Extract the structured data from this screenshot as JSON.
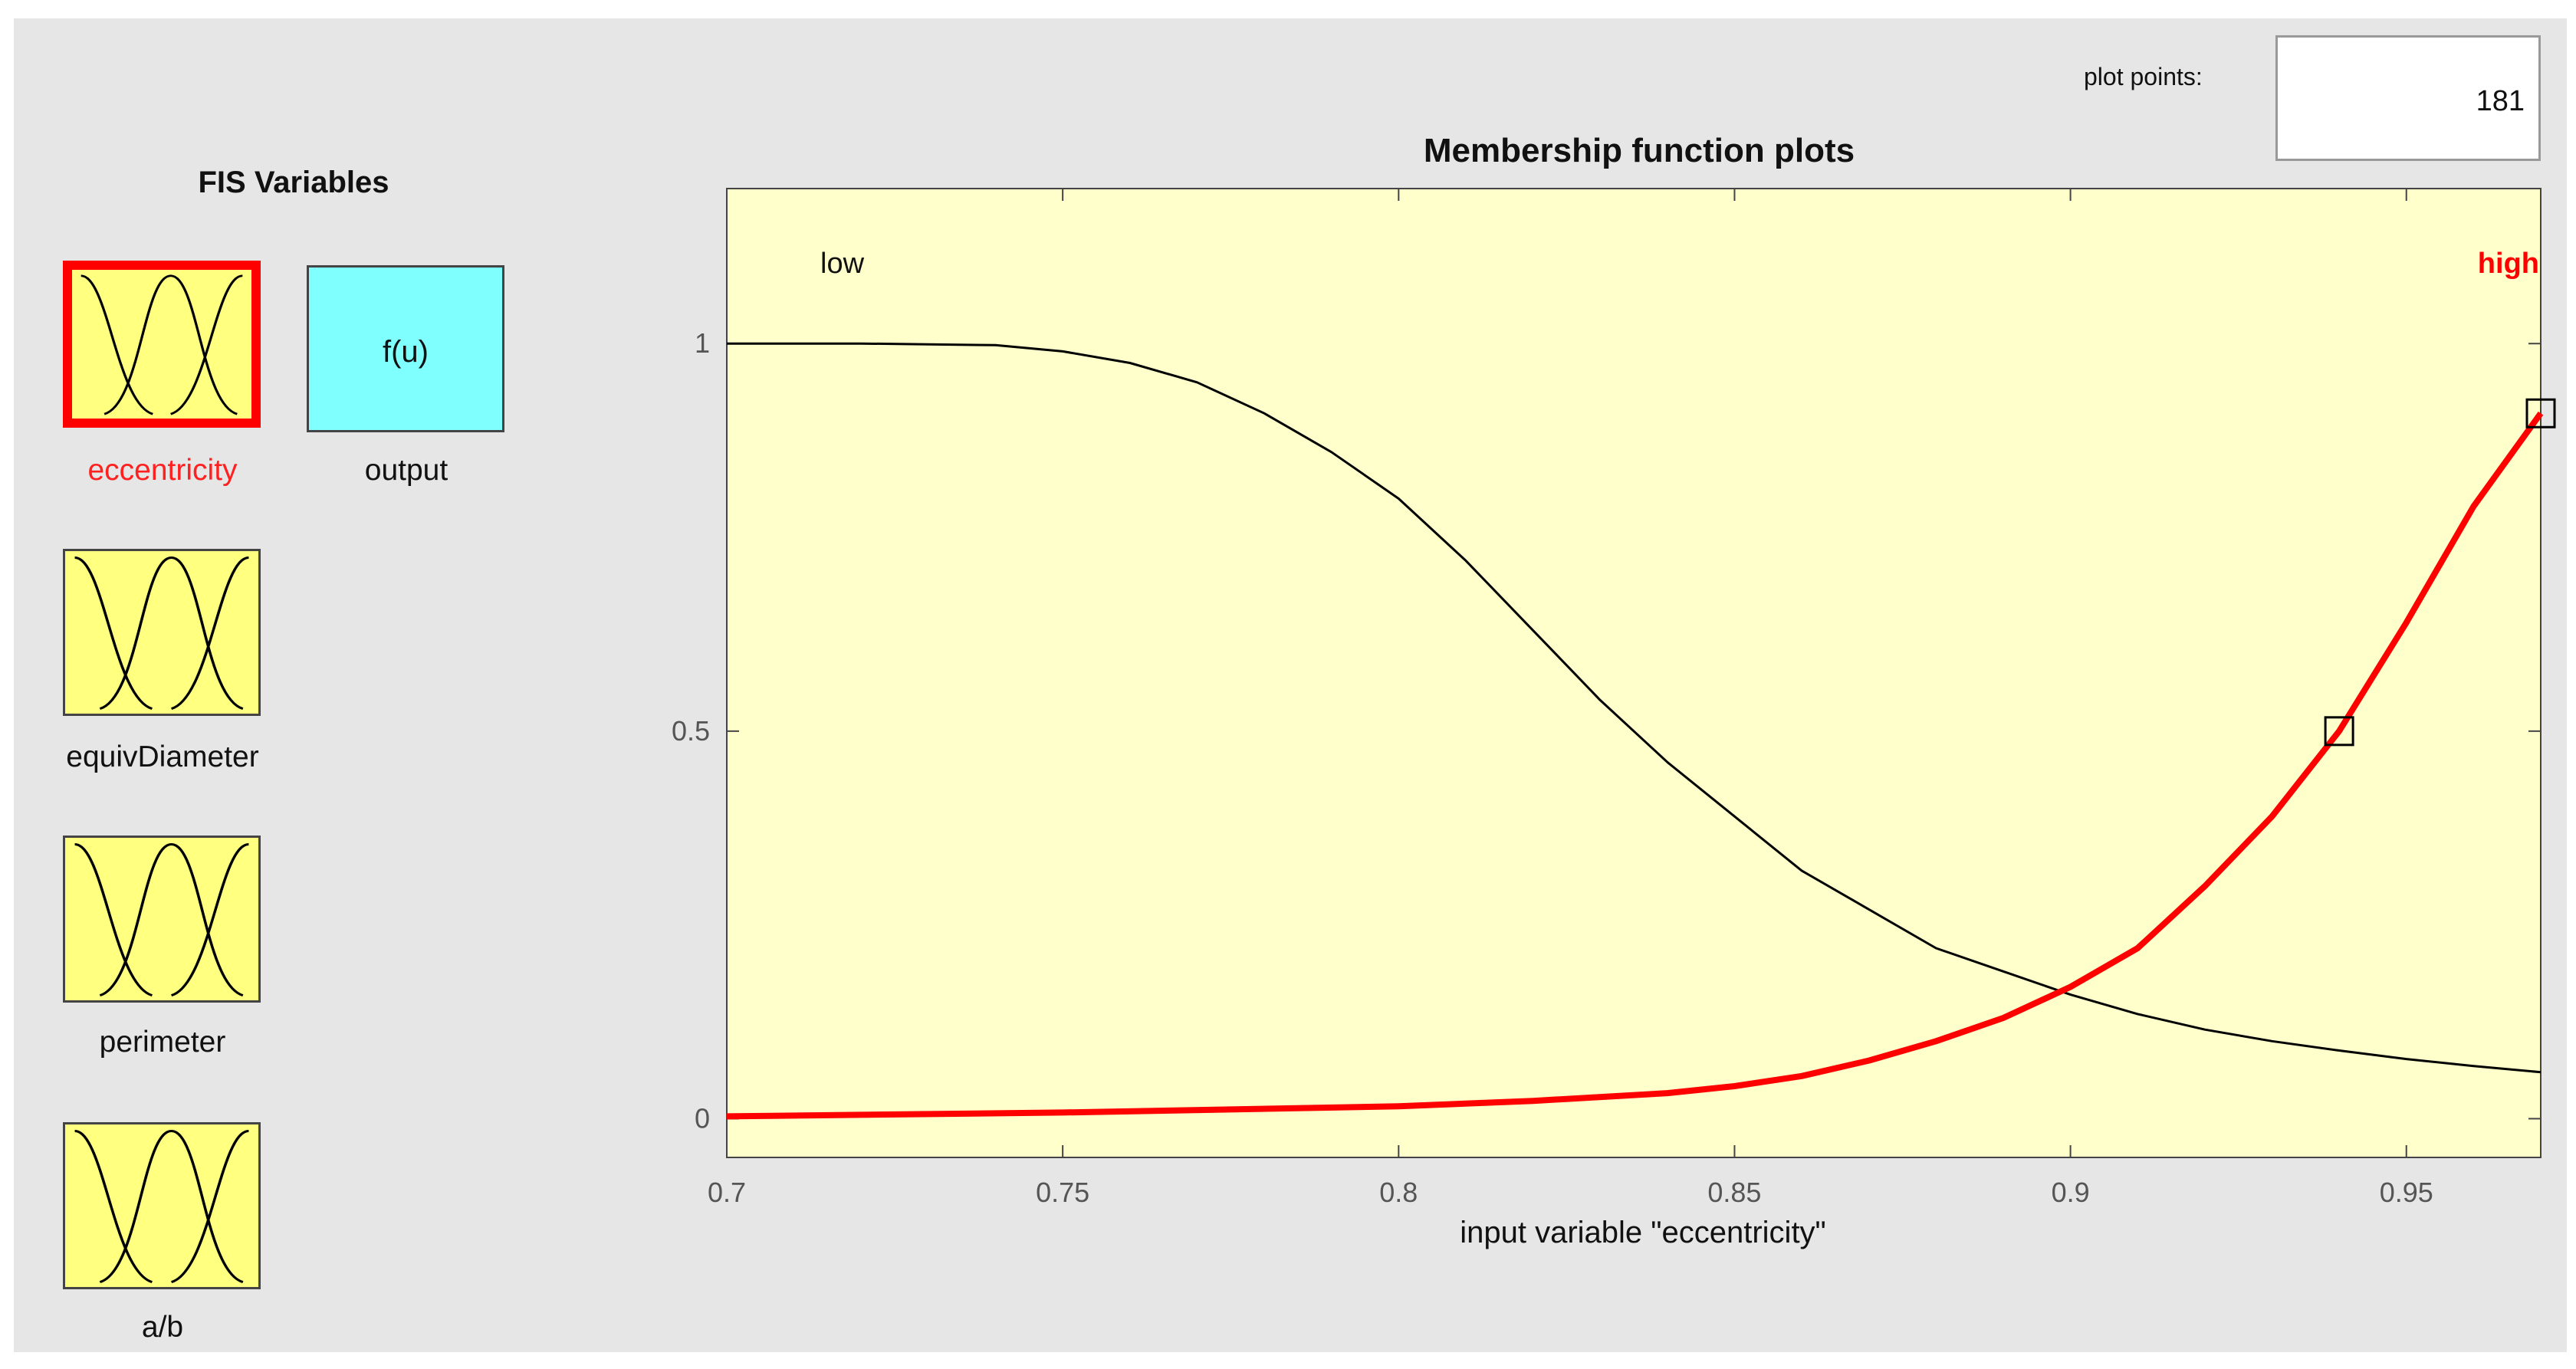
{
  "fis": {
    "title": "FIS Variables",
    "inputs": [
      {
        "name": "eccentricity",
        "selected": true
      },
      {
        "name": "equivDiameter",
        "selected": false
      },
      {
        "name": "perimeter",
        "selected": false
      },
      {
        "name": "a/b",
        "selected": false
      }
    ],
    "output": {
      "name": "output",
      "symbol": "f(u)"
    }
  },
  "plot_points": {
    "label": "plot points:",
    "value": "181"
  },
  "colors": {
    "window_bg": "#e6e6e6",
    "plot_bg": "#ffffcc",
    "input_tile": "#ffff80",
    "output_tile": "#80ffff",
    "selected": "#ff0000"
  },
  "chart_data": {
    "type": "line",
    "title": "Membership function plots",
    "xlabel": "input variable \"eccentricity\"",
    "ylabel": "",
    "xlim": [
      0.7,
      0.97
    ],
    "ylim": [
      -0.05,
      1.2
    ],
    "x_ticks": [
      0.7,
      0.75,
      0.8,
      0.85,
      0.9,
      0.95
    ],
    "y_ticks": [
      0,
      0.5,
      1
    ],
    "series": [
      {
        "name": "low",
        "color": "#000000",
        "selected": false,
        "x": [
          0.7,
          0.72,
          0.74,
          0.75,
          0.76,
          0.77,
          0.78,
          0.79,
          0.8,
          0.81,
          0.82,
          0.83,
          0.84,
          0.85,
          0.86,
          0.87,
          0.88,
          0.89,
          0.9,
          0.91,
          0.92,
          0.93,
          0.94,
          0.95,
          0.96,
          0.97
        ],
        "y": [
          1.0,
          1.0,
          0.998,
          0.99,
          0.975,
          0.95,
          0.91,
          0.86,
          0.8,
          0.72,
          0.63,
          0.54,
          0.46,
          0.39,
          0.32,
          0.27,
          0.22,
          0.19,
          0.16,
          0.135,
          0.115,
          0.1,
          0.088,
          0.077,
          0.068,
          0.06
        ]
      },
      {
        "name": "high",
        "color": "#ff0000",
        "selected": true,
        "x": [
          0.7,
          0.75,
          0.8,
          0.82,
          0.84,
          0.85,
          0.86,
          0.87,
          0.88,
          0.89,
          0.9,
          0.91,
          0.92,
          0.93,
          0.94,
          0.95,
          0.96,
          0.97
        ],
        "y": [
          0.003,
          0.008,
          0.016,
          0.023,
          0.033,
          0.042,
          0.055,
          0.075,
          0.1,
          0.13,
          0.17,
          0.22,
          0.3,
          0.39,
          0.5,
          0.64,
          0.79,
          0.91
        ]
      }
    ],
    "control_points": [
      {
        "x": 0.94,
        "y": 0.5
      },
      {
        "x": 0.97,
        "y": 0.91
      }
    ]
  }
}
